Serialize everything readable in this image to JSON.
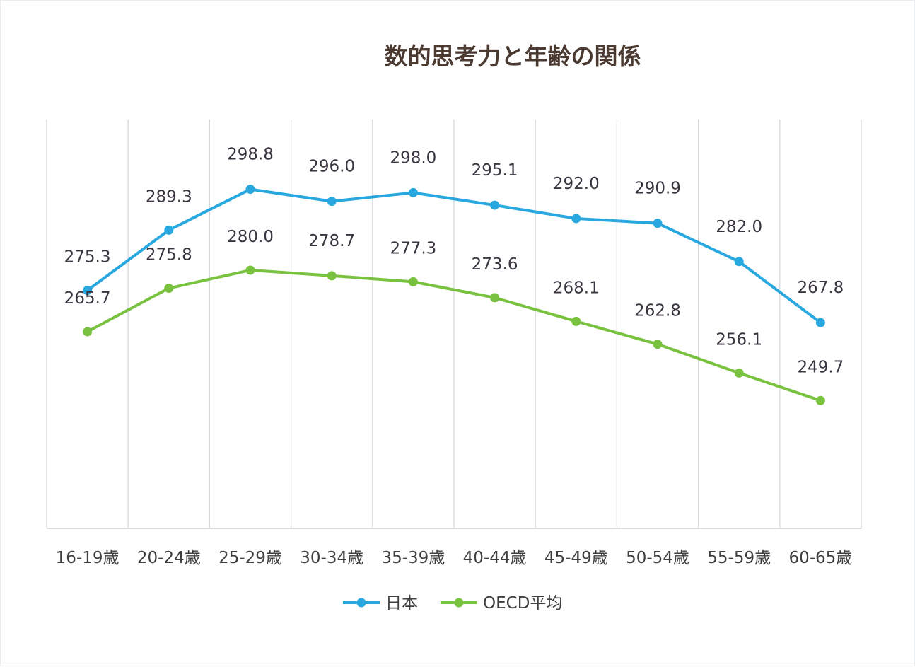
{
  "chart_data": {
    "type": "line",
    "title": "数的思考力と年齢の関係",
    "xlabel": "",
    "ylabel": "",
    "categories": [
      "16-19歳",
      "20-24歳",
      "25-29歳",
      "30-34歳",
      "35-39歳",
      "40-44歳",
      "45-49歳",
      "50-54歳",
      "55-59歳",
      "60-65歳"
    ],
    "series": [
      {
        "name": "日本",
        "color": "#29a8e0",
        "values": [
          275.3,
          289.3,
          298.8,
          296.0,
          298.0,
          295.1,
          292.0,
          290.9,
          282.0,
          267.8
        ],
        "labels": [
          "275.3",
          "289.3",
          "298.8",
          "296.0",
          "298.0",
          "295.1",
          "292.0",
          "290.9",
          "282.0",
          "267.8"
        ]
      },
      {
        "name": "OECD平均",
        "color": "#79c23f",
        "values": [
          265.7,
          275.8,
          280.0,
          278.7,
          277.3,
          273.6,
          268.1,
          262.8,
          256.1,
          249.7
        ],
        "labels": [
          "265.7",
          "275.8",
          "280.0",
          "278.7",
          "277.3",
          "273.6",
          "268.1",
          "262.8",
          "256.1",
          "249.7"
        ]
      }
    ],
    "ylim": [
      220,
      315
    ],
    "grid": "vertical",
    "legend": "bottom"
  }
}
